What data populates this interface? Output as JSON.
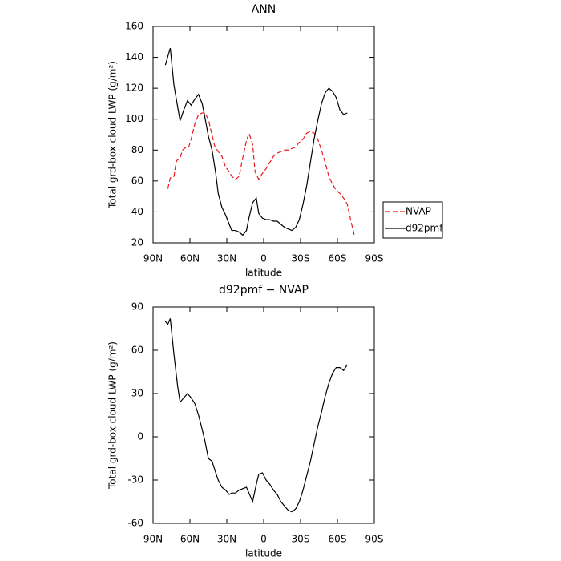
{
  "chart_data": [
    {
      "type": "line",
      "title": "ANN",
      "x_label": "latitude",
      "y_label": "Total grd-box cloud LWP (g/m²)",
      "xlim": [
        90,
        -90
      ],
      "ylim": [
        20,
        160
      ],
      "xticks": [
        {
          "value": 90,
          "label": "90N"
        },
        {
          "value": 60,
          "label": "60N"
        },
        {
          "value": 30,
          "label": "30N"
        },
        0,
        {
          "value": -30,
          "label": "30S"
        },
        {
          "value": -60,
          "label": "60S"
        },
        {
          "value": -90,
          "label": "90S"
        }
      ],
      "yticks": [
        20,
        40,
        60,
        80,
        100,
        120,
        140,
        160
      ],
      "legend": "right",
      "series": [
        {
          "name": "NVAP",
          "color": "#e8191c",
          "dash": true,
          "x": [
            78,
            76,
            73,
            71,
            68,
            66,
            63,
            61,
            59,
            56,
            53,
            50,
            48,
            45,
            43,
            40,
            37,
            34,
            31,
            28,
            26,
            23,
            20,
            17,
            14,
            12,
            9,
            7,
            4,
            1,
            -2,
            -5,
            -8,
            -11,
            -14,
            -17,
            -20,
            -23,
            -26,
            -29,
            -32,
            -35,
            -38,
            -41,
            -44,
            -47,
            -50,
            -53,
            -56,
            -59,
            -62,
            -65,
            -68,
            -71,
            -74
          ],
          "values": [
            55,
            62,
            63,
            73,
            75,
            80,
            82,
            82,
            87,
            97,
            103,
            104,
            104,
            100,
            93,
            83,
            79,
            76,
            69,
            66,
            63,
            61,
            63,
            75,
            86,
            91,
            84,
            66,
            61,
            65,
            68,
            72,
            76,
            78,
            79,
            80,
            80,
            81,
            82,
            85,
            87,
            91,
            92,
            91,
            87,
            80,
            72,
            63,
            58,
            54,
            52,
            49,
            45,
            34,
            24
          ]
        },
        {
          "name": "d92pmf",
          "color": "#000000",
          "dash": false,
          "x": [
            80,
            76,
            73,
            70,
            68,
            65,
            62,
            59,
            56,
            53,
            50,
            48,
            45,
            42,
            39,
            37,
            34,
            31,
            28,
            26,
            23,
            20,
            17,
            14,
            12,
            9,
            6,
            4,
            1,
            -2,
            -5,
            -8,
            -11,
            -14,
            -17,
            -20,
            -23,
            -26,
            -29,
            -32,
            -35,
            -38,
            -41,
            -44,
            -47,
            -50,
            -53,
            -56,
            -59,
            -62,
            -65,
            -68
          ],
          "values": [
            135,
            146,
            122,
            108,
            99,
            106,
            112,
            109,
            113,
            116,
            110,
            102,
            89,
            80,
            65,
            52,
            43,
            38,
            32,
            28,
            28,
            27,
            25,
            28,
            36,
            46,
            49,
            39,
            36,
            35,
            35,
            34,
            34,
            32,
            30,
            29,
            28,
            30,
            35,
            45,
            57,
            72,
            87,
            99,
            110,
            117,
            120,
            118,
            114,
            106,
            103,
            104
          ]
        }
      ]
    },
    {
      "type": "line",
      "title": "d92pmf − NVAP",
      "x_label": "latitude",
      "y_label": "Total grd-box cloud LWP (g/m²)",
      "xlim": [
        90,
        -90
      ],
      "ylim": [
        -60,
        90
      ],
      "xticks": [
        {
          "value": 90,
          "label": "90N"
        },
        {
          "value": 60,
          "label": "60N"
        },
        {
          "value": 30,
          "label": "30N"
        },
        0,
        {
          "value": -30,
          "label": "30S"
        },
        {
          "value": -60,
          "label": "60S"
        },
        {
          "value": -90,
          "label": "90S"
        }
      ],
      "yticks": [
        -60,
        -30,
        0,
        30,
        60,
        90
      ],
      "series": [
        {
          "color": "#000000",
          "dash": false,
          "x": [
            80,
            78,
            76,
            73,
            70,
            68,
            65,
            62,
            59,
            56,
            53,
            50,
            48,
            45,
            42,
            39,
            37,
            34,
            31,
            28,
            26,
            23,
            20,
            17,
            14,
            12,
            9,
            6,
            4,
            1,
            -2,
            -5,
            -8,
            -11,
            -14,
            -17,
            -20,
            -23,
            -26,
            -29,
            -32,
            -35,
            -38,
            -41,
            -44,
            -47,
            -50,
            -53,
            -56,
            -59,
            -62,
            -65,
            -68
          ],
          "values": [
            80,
            78,
            82,
            57,
            35,
            24,
            27,
            30,
            27,
            23,
            15,
            5,
            -2,
            -15,
            -17,
            -25,
            -30,
            -35,
            -37,
            -40,
            -39,
            -39,
            -37,
            -36,
            -35,
            -39,
            -45,
            -33,
            -26,
            -25,
            -30,
            -33,
            -37,
            -40,
            -45,
            -48,
            -51,
            -52,
            -50,
            -45,
            -37,
            -27,
            -17,
            -5,
            7,
            17,
            28,
            37,
            44,
            48,
            48,
            46,
            50
          ]
        }
      ]
    }
  ]
}
